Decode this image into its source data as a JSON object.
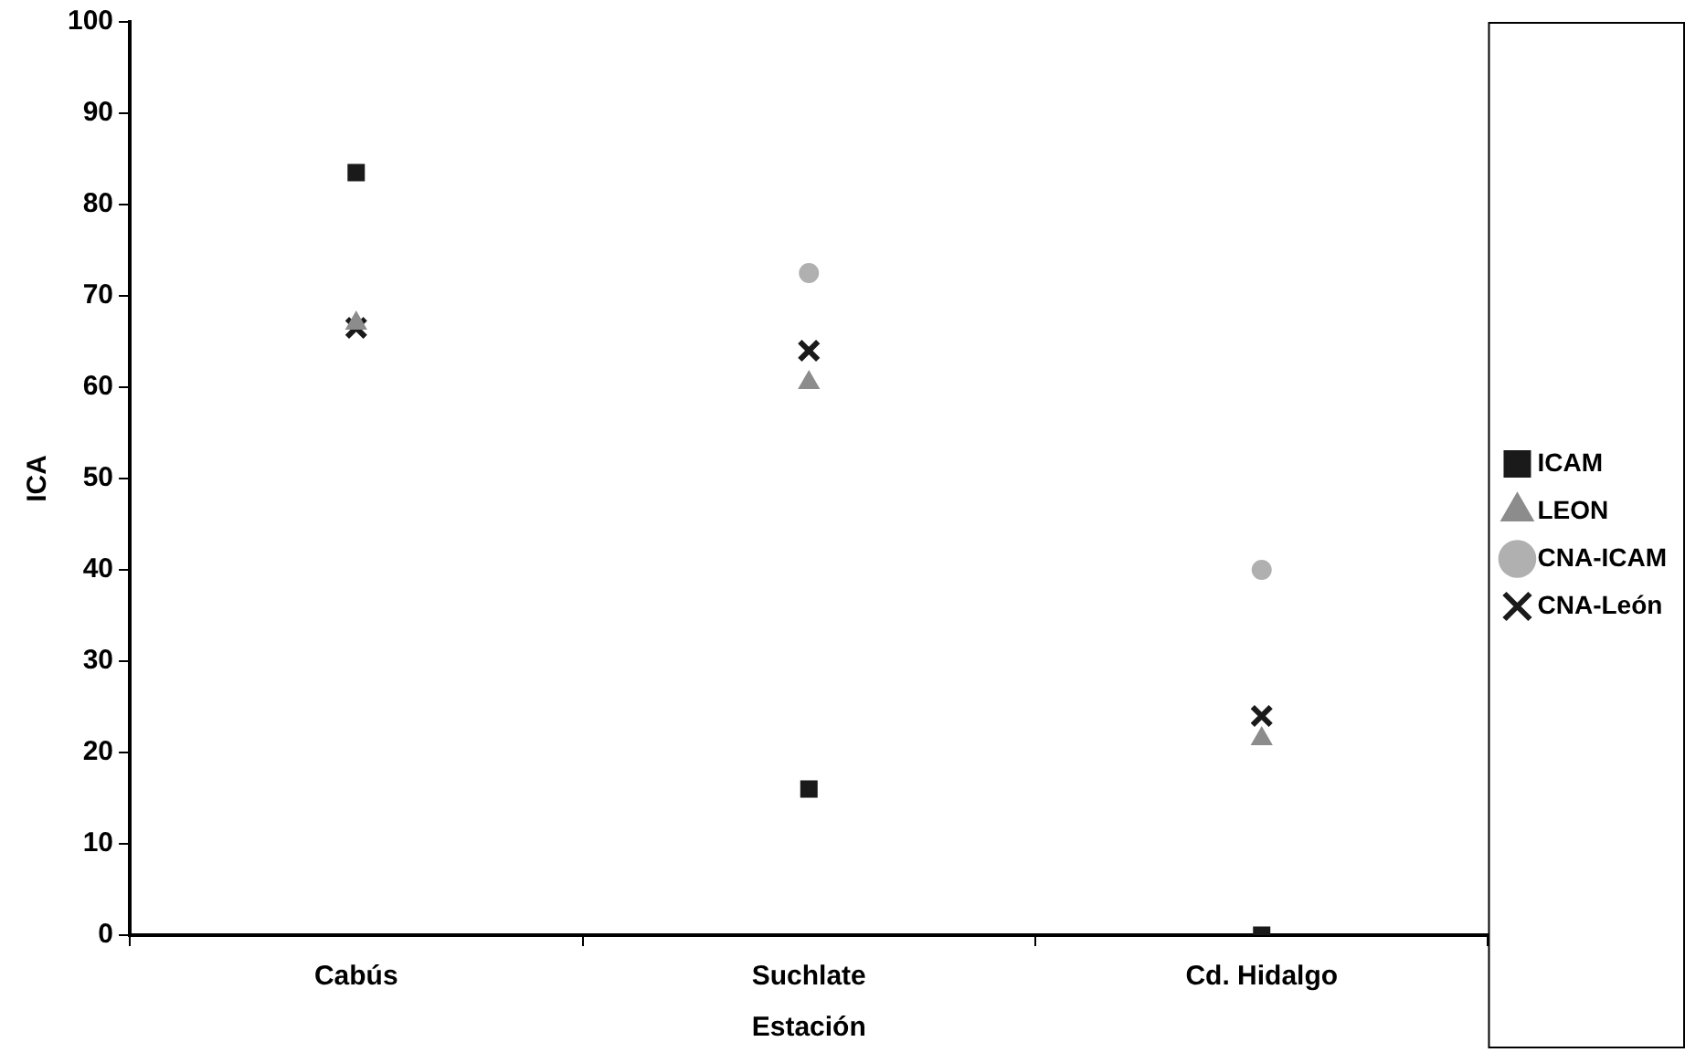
{
  "chart_data": {
    "type": "scatter",
    "xlabel": "Estación",
    "ylabel": "ICA",
    "categories": [
      "Cabús",
      "Suchlate",
      "Cd. Hidalgo"
    ],
    "series": [
      {
        "name": "ICAM",
        "color": "#1a1a1a",
        "marker": "square",
        "values": [
          83.5,
          16,
          0
        ]
      },
      {
        "name": "LEON",
        "color": "#8c8c8c",
        "marker": "triangle",
        "values": [
          67,
          60.5,
          21.5
        ]
      },
      {
        "name": "CNA-ICAM",
        "color": "#b0b0b0",
        "marker": "circle",
        "values": [
          null,
          72.5,
          40
        ]
      },
      {
        "name": "CNA-León",
        "color": "#1a1a1a",
        "marker": "cross",
        "values": [
          66.5,
          64,
          24
        ]
      }
    ],
    "ylim": [
      0,
      100
    ],
    "yticks": [
      0,
      10,
      20,
      30,
      40,
      50,
      60,
      70,
      80,
      90,
      100
    ],
    "grid": false,
    "legend": "right"
  }
}
